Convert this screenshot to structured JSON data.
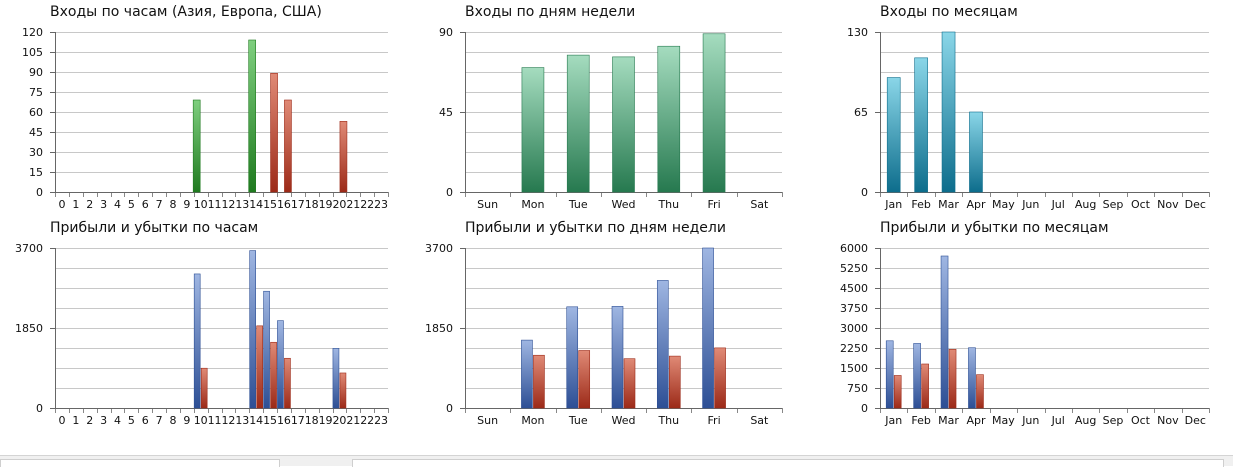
{
  "colors": {
    "green_dark": "#1f7a1f",
    "green_light": "#7fcf7f",
    "red_dark": "#9c2a18",
    "red_light": "#e08a76",
    "mint_dark": "#26794f",
    "mint_light": "#a5dcbf",
    "teal_dark": "#0d6d8c",
    "teal_light": "#8ad6e8",
    "blue_dark": "#2d4f95",
    "blue_light": "#9fb6e2",
    "grid": "#c8c8c8"
  },
  "chart_data": [
    {
      "id": "hours-entries",
      "type": "bar",
      "title": "Входы по часам (Азия, Европа, США)",
      "xlabel": "",
      "ylabel": "",
      "ylim": [
        0,
        120
      ],
      "yticks": [
        0,
        15,
        30,
        45,
        60,
        75,
        90,
        105,
        120
      ],
      "grid": true,
      "categories": [
        "0",
        "1",
        "2",
        "3",
        "4",
        "5",
        "6",
        "7",
        "8",
        "9",
        "10",
        "11",
        "12",
        "13",
        "14",
        "15",
        "16",
        "17",
        "18",
        "19",
        "20",
        "21",
        "22",
        "23"
      ],
      "series": [
        {
          "color": "green",
          "values": [
            0,
            0,
            0,
            0,
            0,
            0,
            0,
            0,
            0,
            0,
            69,
            0,
            0,
            0,
            114,
            0,
            0,
            0,
            0,
            0,
            0,
            0,
            0,
            0
          ]
        },
        {
          "color": "red",
          "values": [
            0,
            0,
            0,
            0,
            0,
            0,
            0,
            0,
            0,
            0,
            0,
            0,
            0,
            0,
            0,
            89,
            69,
            0,
            0,
            0,
            53,
            0,
            0,
            0
          ]
        }
      ]
    },
    {
      "id": "weekday-entries",
      "type": "bar",
      "title": "Входы по дням недели",
      "xlabel": "",
      "ylabel": "",
      "ylim": [
        0,
        90
      ],
      "yticks": [
        0,
        45,
        90
      ],
      "grid": true,
      "categories": [
        "Sun",
        "Mon",
        "Tue",
        "Wed",
        "Thu",
        "Fri",
        "Sat"
      ],
      "series": [
        {
          "color": "mint",
          "values": [
            0,
            70,
            77,
            76,
            82,
            89,
            0
          ]
        }
      ]
    },
    {
      "id": "month-entries",
      "type": "bar",
      "title": "Входы по месяцам",
      "xlabel": "",
      "ylabel": "",
      "ylim": [
        0,
        130
      ],
      "yticks": [
        0,
        65,
        130
      ],
      "grid": true,
      "categories": [
        "Jan",
        "Feb",
        "Mar",
        "Apr",
        "May",
        "Jun",
        "Jul",
        "Aug",
        "Sep",
        "Oct",
        "Nov",
        "Dec"
      ],
      "series": [
        {
          "color": "teal",
          "values": [
            93,
            109,
            130,
            65,
            0,
            0,
            0,
            0,
            0,
            0,
            0,
            0
          ]
        }
      ]
    },
    {
      "id": "hours-pnl",
      "type": "bar",
      "title": "Прибыли и убытки по часам",
      "xlabel": "",
      "ylabel": "",
      "ylim": [
        0,
        3700
      ],
      "yticks": [
        0,
        1850,
        3700
      ],
      "grid": true,
      "categories": [
        "0",
        "1",
        "2",
        "3",
        "4",
        "5",
        "6",
        "7",
        "8",
        "9",
        "10",
        "11",
        "12",
        "13",
        "14",
        "15",
        "16",
        "17",
        "18",
        "19",
        "20",
        "21",
        "22",
        "23"
      ],
      "series": [
        {
          "color": "blue",
          "values": [
            0,
            0,
            0,
            0,
            0,
            0,
            0,
            0,
            0,
            0,
            3100,
            0,
            0,
            0,
            3640,
            2700,
            2020,
            0,
            0,
            0,
            1380,
            0,
            0,
            0
          ]
        },
        {
          "color": "red",
          "values": [
            0,
            0,
            0,
            0,
            0,
            0,
            0,
            0,
            0,
            0,
            920,
            0,
            0,
            0,
            1900,
            1520,
            1150,
            0,
            0,
            0,
            810,
            0,
            0,
            0
          ]
        }
      ]
    },
    {
      "id": "weekday-pnl",
      "type": "bar",
      "title": "Прибыли и убытки по дням недели",
      "xlabel": "",
      "ylabel": "",
      "ylim": [
        0,
        3700
      ],
      "yticks": [
        0,
        1850,
        3700
      ],
      "grid": true,
      "categories": [
        "Sun",
        "Mon",
        "Tue",
        "Wed",
        "Thu",
        "Fri",
        "Sat"
      ],
      "series": [
        {
          "color": "blue",
          "values": [
            0,
            1570,
            2340,
            2350,
            2950,
            3700,
            0
          ]
        },
        {
          "color": "red",
          "values": [
            0,
            1220,
            1330,
            1140,
            1200,
            1390,
            0
          ]
        }
      ]
    },
    {
      "id": "month-pnl",
      "type": "bar",
      "title": "Прибыли и убытки по месяцам",
      "xlabel": "",
      "ylabel": "",
      "ylim": [
        0,
        6000
      ],
      "yticks": [
        0,
        750,
        1500,
        2250,
        3000,
        3750,
        4500,
        5250,
        6000
      ],
      "grid": true,
      "categories": [
        "Jan",
        "Feb",
        "Mar",
        "Apr",
        "May",
        "Jun",
        "Jul",
        "Aug",
        "Sep",
        "Oct",
        "Nov",
        "Dec"
      ],
      "series": [
        {
          "color": "blue",
          "values": [
            2520,
            2420,
            5700,
            2260,
            0,
            0,
            0,
            0,
            0,
            0,
            0,
            0
          ]
        },
        {
          "color": "red",
          "values": [
            1220,
            1650,
            2200,
            1250,
            0,
            0,
            0,
            0,
            0,
            0,
            0,
            0
          ]
        }
      ]
    }
  ]
}
